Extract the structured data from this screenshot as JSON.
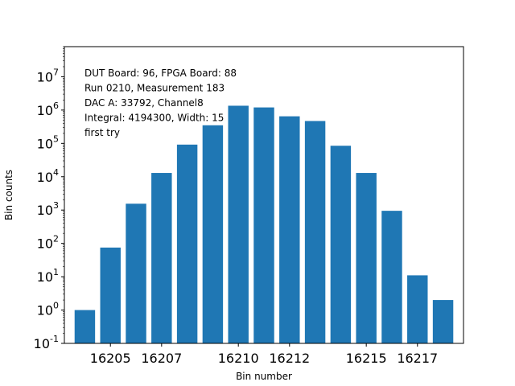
{
  "chart_data": {
    "type": "bar",
    "title": "",
    "xlabel": "Bin number",
    "ylabel": "Bin counts",
    "yscale": "log",
    "ylim": [
      0.1,
      80000000
    ],
    "xlim": [
      16203.2,
      16218.8
    ],
    "bar_color": "#1f77b4",
    "x": [
      16204,
      16205,
      16206,
      16207,
      16208,
      16209,
      16210,
      16211,
      16212,
      16213,
      16214,
      16215,
      16216,
      16217,
      16218
    ],
    "values": [
      1,
      75,
      1550,
      13000,
      92000,
      350000,
      1350000,
      1200000,
      650000,
      470000,
      85000,
      13000,
      950,
      11,
      2
    ],
    "x_tick_labels": [
      "16205",
      "16207",
      "16210",
      "16212",
      "16215",
      "16217"
    ],
    "y_tick_labels": [
      {
        "base": "10",
        "exp": "-1"
      },
      {
        "base": "10",
        "exp": "0"
      },
      {
        "base": "10",
        "exp": "1"
      },
      {
        "base": "10",
        "exp": "2"
      },
      {
        "base": "10",
        "exp": "3"
      },
      {
        "base": "10",
        "exp": "4"
      },
      {
        "base": "10",
        "exp": "5"
      },
      {
        "base": "10",
        "exp": "6"
      },
      {
        "base": "10",
        "exp": "7"
      }
    ],
    "annotation": [
      "DUT Board: 96, FPGA Board: 88",
      "Run 0210, Measurement 183",
      "DAC A: 33792, Channel8",
      "Integral: 4194300, Width: 15",
      "first try"
    ],
    "grid": false
  }
}
